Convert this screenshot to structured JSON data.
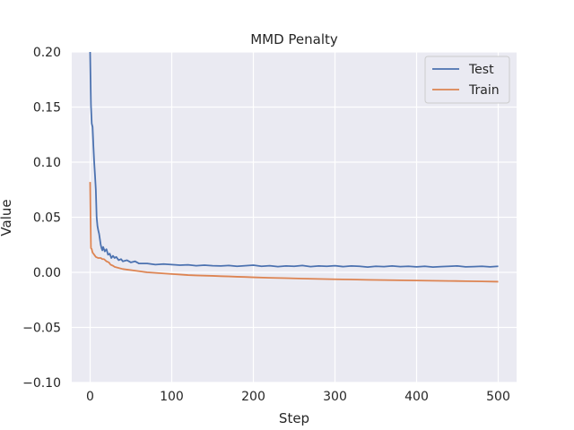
{
  "chart_data": {
    "type": "line",
    "title": "MMD Penalty",
    "xlabel": "Step",
    "ylabel": "Value",
    "xlim": [
      -22.5,
      522.5
    ],
    "ylim": [
      -0.1,
      0.2
    ],
    "xticks": [
      0,
      100,
      200,
      300,
      400,
      500
    ],
    "yticks": [
      -0.1,
      -0.05,
      0.0,
      0.05,
      0.1,
      0.15,
      0.2
    ],
    "xtick_labels": [
      "0",
      "100",
      "200",
      "300",
      "400",
      "500"
    ],
    "ytick_labels": [
      "−0.10",
      "−0.05",
      "0.00",
      "0.05",
      "0.10",
      "0.15",
      "0.20"
    ],
    "grid": true,
    "legend_position": "top-right",
    "series": [
      {
        "name": "Test",
        "color": "#4c72b0",
        "x": [
          0,
          1,
          2,
          3,
          4,
          5,
          6,
          7,
          8,
          9,
          10,
          11,
          12,
          13,
          14,
          15,
          16,
          18,
          20,
          22,
          24,
          26,
          28,
          30,
          32,
          35,
          38,
          40,
          45,
          50,
          55,
          60,
          70,
          80,
          90,
          100,
          110,
          120,
          130,
          140,
          150,
          160,
          170,
          180,
          190,
          200,
          210,
          220,
          230,
          240,
          250,
          260,
          270,
          280,
          290,
          300,
          310,
          320,
          330,
          340,
          350,
          360,
          370,
          380,
          390,
          400,
          410,
          420,
          430,
          440,
          450,
          460,
          470,
          480,
          490,
          500
        ],
        "y": [
          0.2,
          0.152,
          0.135,
          0.132,
          0.115,
          0.1,
          0.088,
          0.075,
          0.05,
          0.042,
          0.038,
          0.035,
          0.03,
          0.025,
          0.022,
          0.02,
          0.023,
          0.019,
          0.021,
          0.016,
          0.017,
          0.013,
          0.015,
          0.013,
          0.014,
          0.011,
          0.012,
          0.01,
          0.011,
          0.009,
          0.01,
          0.008,
          0.008,
          0.007,
          0.0075,
          0.007,
          0.0065,
          0.0068,
          0.006,
          0.0065,
          0.006,
          0.0058,
          0.0062,
          0.0055,
          0.006,
          0.0065,
          0.0055,
          0.006,
          0.0052,
          0.0058,
          0.0055,
          0.0062,
          0.0052,
          0.0058,
          0.0055,
          0.006,
          0.0052,
          0.0058,
          0.0055,
          0.0048,
          0.0055,
          0.0052,
          0.0058,
          0.0052,
          0.0055,
          0.005,
          0.0055,
          0.0048,
          0.0052,
          0.0055,
          0.0058,
          0.005,
          0.0052,
          0.0055,
          0.005,
          0.0055
        ]
      },
      {
        "name": "Train",
        "color": "#dd8452",
        "x": [
          0,
          1,
          2,
          3,
          5,
          7,
          10,
          13,
          15,
          17,
          20,
          23,
          25,
          28,
          30,
          35,
          40,
          45,
          50,
          60,
          70,
          80,
          90,
          100,
          110,
          120,
          130,
          140,
          150,
          160,
          170,
          180,
          190,
          200,
          220,
          240,
          260,
          280,
          300,
          320,
          340,
          360,
          380,
          400,
          420,
          440,
          460,
          480,
          500
        ],
        "y": [
          0.082,
          0.022,
          0.021,
          0.018,
          0.016,
          0.014,
          0.013,
          0.013,
          0.012,
          0.012,
          0.01,
          0.009,
          0.007,
          0.006,
          0.005,
          0.004,
          0.003,
          0.0025,
          0.002,
          0.001,
          0.0,
          -0.0005,
          -0.001,
          -0.0015,
          -0.002,
          -0.0025,
          -0.0028,
          -0.003,
          -0.0032,
          -0.0035,
          -0.0037,
          -0.004,
          -0.0042,
          -0.0045,
          -0.005,
          -0.0053,
          -0.0057,
          -0.006,
          -0.0063,
          -0.0065,
          -0.0068,
          -0.007,
          -0.0072,
          -0.0074,
          -0.0076,
          -0.0078,
          -0.008,
          -0.0082,
          -0.0085
        ]
      }
    ]
  }
}
